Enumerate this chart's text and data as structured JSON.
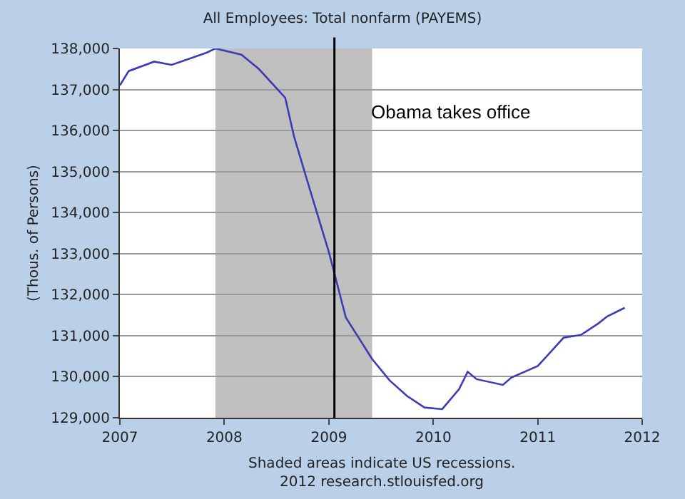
{
  "chart_data": {
    "type": "line",
    "title": "All Employees: Total nonfarm (PAYEMS)",
    "ylabel": "(Thous. of Persons)",
    "x": [
      "2007-01",
      "2007-02",
      "2007-05",
      "2007-07",
      "2007-11",
      "2007-12",
      "2008-03",
      "2008-05",
      "2008-08",
      "2008-09",
      "2008-11",
      "2009-01",
      "2009-03",
      "2009-06",
      "2009-08",
      "2009-10",
      "2009-12",
      "2010-02",
      "2010-04",
      "2010-05",
      "2010-06",
      "2010-09",
      "2010-10",
      "2011-01",
      "2011-04",
      "2011-06",
      "2011-08",
      "2011-09",
      "2011-11"
    ],
    "series": [
      {
        "color": "#3c3cb4",
        "values": [
          137100,
          137450,
          137680,
          137600,
          137900,
          138000,
          137850,
          137500,
          136800,
          135850,
          134430,
          133030,
          131440,
          130430,
          129910,
          129530,
          129250,
          129210,
          129700,
          130120,
          129940,
          129800,
          129980,
          130260,
          130950,
          131020,
          131300,
          131470,
          131680
        ]
      }
    ],
    "xlim": [
      "2007",
      "2012"
    ],
    "xticks": [
      "2007",
      "2008",
      "2009",
      "2010",
      "2011",
      "2012"
    ],
    "ylim": [
      129000,
      138000
    ],
    "yticks": [
      {
        "value": 129000,
        "label": "129,000"
      },
      {
        "value": 130000,
        "label": "130,000"
      },
      {
        "value": 131000,
        "label": "131,000"
      },
      {
        "value": 132000,
        "label": "132,000"
      },
      {
        "value": 133000,
        "label": "133,000"
      },
      {
        "value": 134000,
        "label": "134,000"
      },
      {
        "value": 135000,
        "label": "135,000"
      },
      {
        "value": 136000,
        "label": "136,000"
      },
      {
        "value": 137000,
        "label": "137,000"
      },
      {
        "value": 138000,
        "label": "138,000"
      }
    ],
    "bands": [
      {
        "axis": "x",
        "from": "2007-12",
        "to": "2009-06",
        "color": "#c0c0c0"
      }
    ],
    "ref_lines": [
      {
        "axis": "x",
        "value": "2009-01-20",
        "label": "Obama takes office",
        "color": "#000000"
      }
    ],
    "annotations": [
      "Shaded areas indicate US recessions.",
      "2012 research.stlouisfed.org"
    ],
    "grid": "y",
    "marker": "none",
    "line_style": "solid"
  }
}
